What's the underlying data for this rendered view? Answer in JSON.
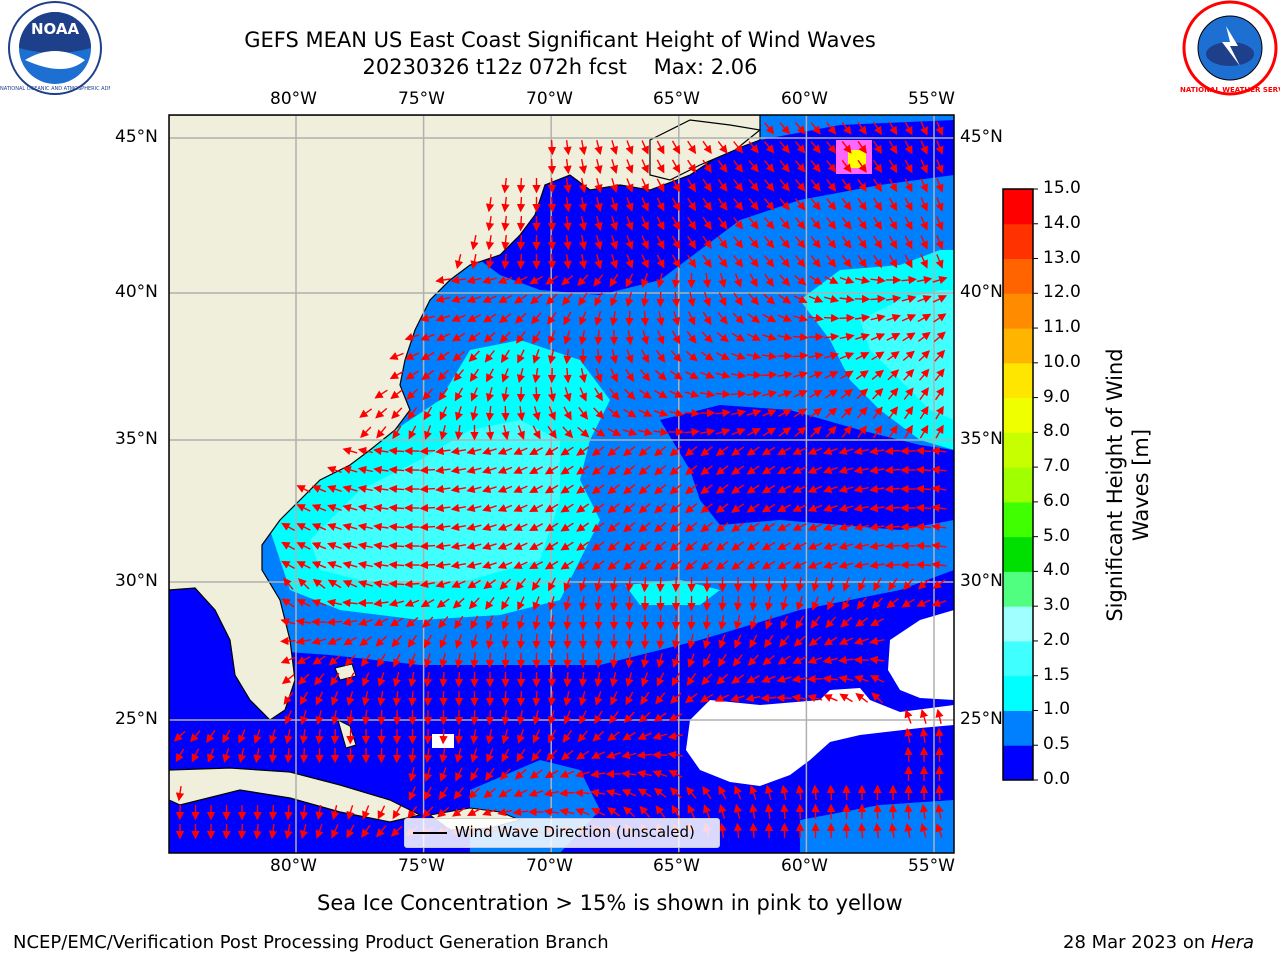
{
  "header": {
    "title_line1": "GEFS MEAN US East Coast Significant Height of Wind Waves",
    "title_line2": "20230326 t12z 072h fcst    Max: 2.06"
  },
  "logos": {
    "left": {
      "text": "NOAA",
      "ring_text": "NATIONAL OCEANIC AND ATMOSPHERIC ADMINISTRATION · U.S. DEPARTMENT OF COMMERCE"
    },
    "right": {
      "ring_text": "NATIONAL WEATHER SERVICE"
    }
  },
  "map": {
    "lon_labels": [
      "80°W",
      "75°W",
      "70°W",
      "65°W",
      "60°W",
      "55°W"
    ],
    "lat_labels": [
      "45°N",
      "40°N",
      "35°N",
      "30°N",
      "25°N"
    ],
    "lon_ticks": [
      -80,
      -75,
      -70,
      -65,
      -60,
      -55
    ],
    "lat_ticks": [
      45,
      40,
      35,
      30,
      25
    ],
    "lon_range": [
      -85,
      -54.5
    ],
    "lat_range": [
      20.5,
      45.8
    ],
    "colors": {
      "land": "#efefdc",
      "ocean_deep": "#0000ff",
      "grid": "#b0b0b0",
      "arrow": "#ff0000",
      "ice": "#ff66ff"
    },
    "max_value": "2.06"
  },
  "legend": {
    "label": "Wind Wave Direction (unscaled)"
  },
  "colorbar": {
    "label_line1": "Significant Height of Wind",
    "label_line2": "Waves [m]",
    "ticks": [
      "0.0",
      "0.5",
      "1.0",
      "1.5",
      "2.0",
      "3.0",
      "4.0",
      "5.0",
      "6.0",
      "7.0",
      "8.0",
      "9.0",
      "10.0",
      "11.0",
      "12.0",
      "13.0",
      "14.0",
      "15.0"
    ],
    "colors": [
      "#0000ff",
      "#0080ff",
      "#00ffff",
      "#40ffff",
      "#a0ffff",
      "#50ff80",
      "#00e000",
      "#40ff00",
      "#a0ff00",
      "#c8ff00",
      "#f0ff00",
      "#ffe600",
      "#ffb400",
      "#ff8c00",
      "#ff6400",
      "#ff3200",
      "#ff0000"
    ]
  },
  "footer": {
    "note": "Sea Ice Concentration > 15% is shown in pink to yellow",
    "left": "NCEP/EMC/Verification Post Processing Product Generation Branch",
    "right_date": "28 Mar 2023 on ",
    "right_host": "Hera"
  }
}
